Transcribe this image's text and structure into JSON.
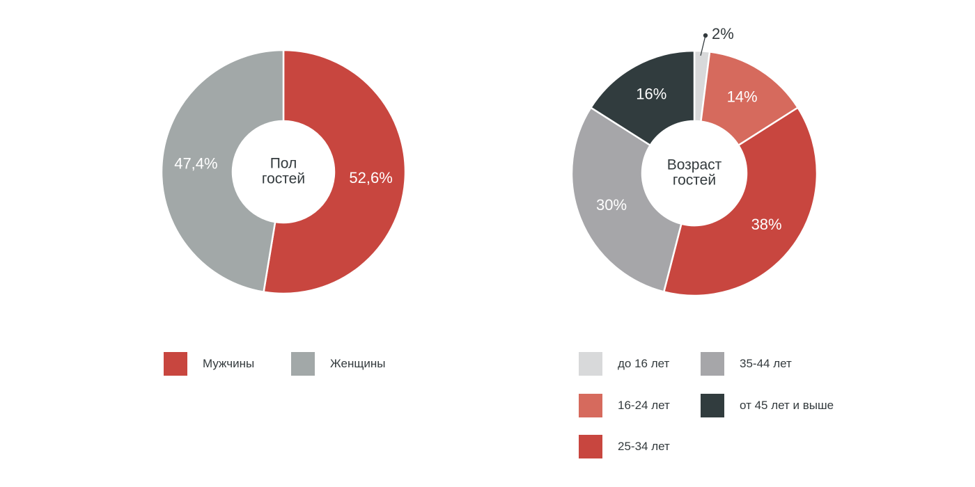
{
  "chart_data": [
    {
      "type": "pie",
      "title": "Пол гостей",
      "title_lines": [
        "Пол",
        "гостей"
      ],
      "unit": "%",
      "slices": [
        {
          "name": "Мужчины",
          "value": 52.6,
          "label": "52,6%",
          "color": "#c8463f"
        },
        {
          "name": "Женщины",
          "value": 47.4,
          "label": "47,4%",
          "color": "#a2a8a8"
        }
      ]
    },
    {
      "type": "pie",
      "title": "Возраст гостей",
      "title_lines": [
        "Возраст",
        "гостей"
      ],
      "unit": "%",
      "slices": [
        {
          "name": "до 16 лет",
          "value": 2,
          "label": "2%",
          "color": "#d8d9da"
        },
        {
          "name": "16-24 лет",
          "value": 14,
          "label": "14%",
          "color": "#d66a5d"
        },
        {
          "name": "25-34 лет",
          "value": 38,
          "label": "38%",
          "color": "#c8463f"
        },
        {
          "name": "35-44 лет",
          "value": 30,
          "label": "30%",
          "color": "#a6a6a9"
        },
        {
          "name": "от 45 лет и выше",
          "value": 16,
          "label": "16%",
          "color": "#313c3e"
        }
      ]
    }
  ]
}
